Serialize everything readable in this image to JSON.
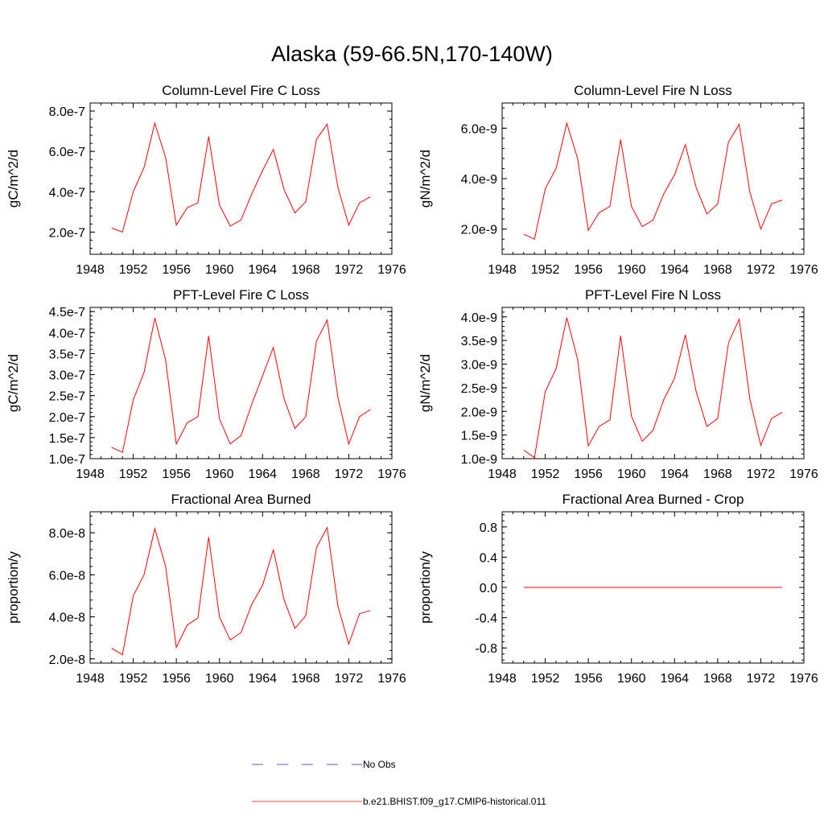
{
  "figure": {
    "title": "Alaska (59-66.5N,170-140W)"
  },
  "chart_data": [
    {
      "type": "line",
      "title": "Column-Level Fire C Loss",
      "xlabel": "",
      "ylabel": "gC/m^2/d",
      "xlim": [
        1948,
        1976
      ],
      "ylim": [
        9e-08,
        8.4e-07
      ],
      "xticks": [
        1948,
        1952,
        1956,
        1960,
        1964,
        1968,
        1972,
        1976
      ],
      "yticks": [
        2e-07,
        4e-07,
        6e-07,
        8e-07
      ],
      "ytick_labels": [
        "2.0e-7",
        "4.0e-7",
        "6.0e-7",
        "8.0e-7"
      ],
      "series": [
        {
          "name": "b.e21.BHIST.f09_g17.CMIP6-historical.011",
          "color": "#ff0000",
          "x": [
            1950,
            1951,
            1952,
            1953,
            1954,
            1955,
            1956,
            1957,
            1958,
            1959,
            1960,
            1961,
            1962,
            1963,
            1964,
            1965,
            1966,
            1967,
            1968,
            1969,
            1970,
            1971,
            1972,
            1973,
            1974
          ],
          "y": [
            2.2e-07,
            2e-07,
            4e-07,
            5.2e-07,
            7.4e-07,
            5.7e-07,
            2.35e-07,
            3.2e-07,
            3.45e-07,
            6.75e-07,
            3.35e-07,
            2.3e-07,
            2.6e-07,
            3.9e-07,
            5.05e-07,
            6.1e-07,
            4.1e-07,
            2.95e-07,
            3.5e-07,
            6.6e-07,
            7.35e-07,
            4.2e-07,
            2.35e-07,
            3.45e-07,
            3.75e-07
          ]
        }
      ]
    },
    {
      "type": "line",
      "title": "Column-Level Fire N Loss",
      "xlabel": "",
      "ylabel": "gN/m^2/d",
      "xlim": [
        1948,
        1976
      ],
      "ylim": [
        1e-09,
        7e-09
      ],
      "xticks": [
        1948,
        1952,
        1956,
        1960,
        1964,
        1968,
        1972,
        1976
      ],
      "yticks": [
        2e-09,
        4e-09,
        6e-09
      ],
      "ytick_labels": [
        "2.0e-9",
        "4.0e-9",
        "6.0e-9"
      ],
      "series": [
        {
          "name": "b.e21.BHIST.f09_g17.CMIP6-historical.011",
          "color": "#ff0000",
          "x": [
            1950,
            1951,
            1952,
            1953,
            1954,
            1955,
            1956,
            1957,
            1958,
            1959,
            1960,
            1961,
            1962,
            1963,
            1964,
            1965,
            1966,
            1967,
            1968,
            1969,
            1970,
            1971,
            1972,
            1973,
            1974
          ],
          "y": [
            1.8e-09,
            1.6e-09,
            3.6e-09,
            4.4e-09,
            6.2e-09,
            4.8e-09,
            1.95e-09,
            2.65e-09,
            2.9e-09,
            5.55e-09,
            2.9e-09,
            2.1e-09,
            2.35e-09,
            3.4e-09,
            4.15e-09,
            5.35e-09,
            3.65e-09,
            2.6e-09,
            3e-09,
            5.45e-09,
            6.15e-09,
            3.45e-09,
            2e-09,
            3e-09,
            3.15e-09
          ]
        }
      ]
    },
    {
      "type": "line",
      "title": "PFT-Level Fire C Loss",
      "xlabel": "",
      "ylabel": "gC/m^2/d",
      "xlim": [
        1948,
        1976
      ],
      "ylim": [
        1e-07,
        4.6e-07
      ],
      "xticks": [
        1948,
        1952,
        1956,
        1960,
        1964,
        1968,
        1972,
        1976
      ],
      "yticks": [
        1e-07,
        1.5e-07,
        2e-07,
        2.5e-07,
        3e-07,
        3.5e-07,
        4e-07,
        4.5e-07
      ],
      "ytick_labels": [
        "1.0e-7",
        "1.5e-7",
        "2.0e-7",
        "2.5e-7",
        "3.0e-7",
        "3.5e-7",
        "4.0e-7",
        "4.5e-7"
      ],
      "series": [
        {
          "name": "b.e21.BHIST.f09_g17.CMIP6-historical.011",
          "color": "#ff0000",
          "x": [
            1950,
            1951,
            1952,
            1953,
            1954,
            1955,
            1956,
            1957,
            1958,
            1959,
            1960,
            1961,
            1962,
            1963,
            1964,
            1965,
            1966,
            1967,
            1968,
            1969,
            1970,
            1971,
            1972,
            1973,
            1974
          ],
          "y": [
            1.27e-07,
            1.15e-07,
            2.4e-07,
            3.05e-07,
            4.35e-07,
            3.35e-07,
            1.35e-07,
            1.85e-07,
            2e-07,
            3.92e-07,
            1.95e-07,
            1.35e-07,
            1.55e-07,
            2.3e-07,
            2.97e-07,
            3.65e-07,
            2.42e-07,
            1.72e-07,
            2e-07,
            3.8e-07,
            4.3e-07,
            2.45e-07,
            1.35e-07,
            2e-07,
            2.17e-07
          ]
        }
      ]
    },
    {
      "type": "line",
      "title": "PFT-Level Fire N Loss",
      "xlabel": "",
      "ylabel": "gN/m^2/d",
      "xlim": [
        1948,
        1976
      ],
      "ylim": [
        1e-09,
        4.2e-09
      ],
      "xticks": [
        1948,
        1952,
        1956,
        1960,
        1964,
        1968,
        1972,
        1976
      ],
      "yticks": [
        1e-09,
        1.5e-09,
        2e-09,
        2.5e-09,
        3e-09,
        3.5e-09,
        4e-09
      ],
      "ytick_labels": [
        "1.0e-9",
        "1.5e-9",
        "2.0e-9",
        "2.5e-9",
        "3.0e-9",
        "3.5e-9",
        "4.0e-9"
      ],
      "series": [
        {
          "name": "b.e21.BHIST.f09_g17.CMIP6-historical.011",
          "color": "#ff0000",
          "x": [
            1950,
            1951,
            1952,
            1953,
            1954,
            1955,
            1956,
            1957,
            1958,
            1959,
            1960,
            1961,
            1962,
            1963,
            1964,
            1965,
            1966,
            1967,
            1968,
            1969,
            1970,
            1971,
            1972,
            1973,
            1974
          ],
          "y": [
            1.18e-09,
            1.02e-09,
            2.42e-09,
            2.9e-09,
            3.98e-09,
            3.1e-09,
            1.27e-09,
            1.68e-09,
            1.82e-09,
            3.6e-09,
            1.9e-09,
            1.37e-09,
            1.6e-09,
            2.25e-09,
            2.7e-09,
            3.62e-09,
            2.42e-09,
            1.68e-09,
            1.85e-09,
            3.45e-09,
            3.95e-09,
            2.25e-09,
            1.28e-09,
            1.85e-09,
            1.98e-09
          ]
        }
      ]
    },
    {
      "type": "line",
      "title": "Fractional Area Burned",
      "xlabel": "",
      "ylabel": "proportion/y",
      "xlim": [
        1948,
        1976
      ],
      "ylim": [
        1.8e-08,
        9e-08
      ],
      "xticks": [
        1948,
        1952,
        1956,
        1960,
        1964,
        1968,
        1972,
        1976
      ],
      "yticks": [
        2e-08,
        4e-08,
        6e-08,
        8e-08
      ],
      "ytick_labels": [
        "2.0e-8",
        "4.0e-8",
        "6.0e-8",
        "8.0e-8"
      ],
      "series": [
        {
          "name": "b.e21.BHIST.f09_g17.CMIP6-historical.011",
          "color": "#ff0000",
          "x": [
            1950,
            1951,
            1952,
            1953,
            1954,
            1955,
            1956,
            1957,
            1958,
            1959,
            1960,
            1961,
            1962,
            1963,
            1964,
            1965,
            1966,
            1967,
            1968,
            1969,
            1970,
            1971,
            1972,
            1973,
            1974
          ],
          "y": [
            2.5e-08,
            2.2e-08,
            5e-08,
            6e-08,
            8.2e-08,
            6.4e-08,
            2.55e-08,
            3.6e-08,
            3.95e-08,
            7.8e-08,
            4e-08,
            2.9e-08,
            3.25e-08,
            4.6e-08,
            5.5e-08,
            7.2e-08,
            4.8e-08,
            3.45e-08,
            4.05e-08,
            7.3e-08,
            8.25e-08,
            4.5e-08,
            2.7e-08,
            4.15e-08,
            4.3e-08
          ]
        }
      ]
    },
    {
      "type": "line",
      "title": "Fractional Area Burned - Crop",
      "xlabel": "",
      "ylabel": "proportion/y",
      "xlim": [
        1948,
        1976
      ],
      "ylim": [
        -1.0,
        1.0
      ],
      "xticks": [
        1948,
        1952,
        1956,
        1960,
        1964,
        1968,
        1972,
        1976
      ],
      "yticks": [
        -0.8,
        -0.4,
        0.0,
        0.4,
        0.8
      ],
      "ytick_labels": [
        "-0.8",
        "-0.4",
        "0.0",
        "0.4",
        "0.8"
      ],
      "series": [
        {
          "name": "b.e21.BHIST.f09_g17.CMIP6-historical.011",
          "color": "#ff0000",
          "x": [
            1950,
            1951,
            1952,
            1953,
            1954,
            1955,
            1956,
            1957,
            1958,
            1959,
            1960,
            1961,
            1962,
            1963,
            1964,
            1965,
            1966,
            1967,
            1968,
            1969,
            1970,
            1971,
            1972,
            1973,
            1974
          ],
          "y": [
            0,
            0,
            0,
            0,
            0,
            0,
            0,
            0,
            0,
            0,
            0,
            0,
            0,
            0,
            0,
            0,
            0,
            0,
            0,
            0,
            0,
            0,
            0,
            0,
            0
          ]
        }
      ]
    }
  ],
  "legend": {
    "items": [
      {
        "label": "No Obs",
        "color": "#2222cc",
        "style": "dashed"
      },
      {
        "label": "b.e21.BHIST.f09_g17.CMIP6-historical.011",
        "color": "#ff0000",
        "style": "solid"
      }
    ]
  }
}
